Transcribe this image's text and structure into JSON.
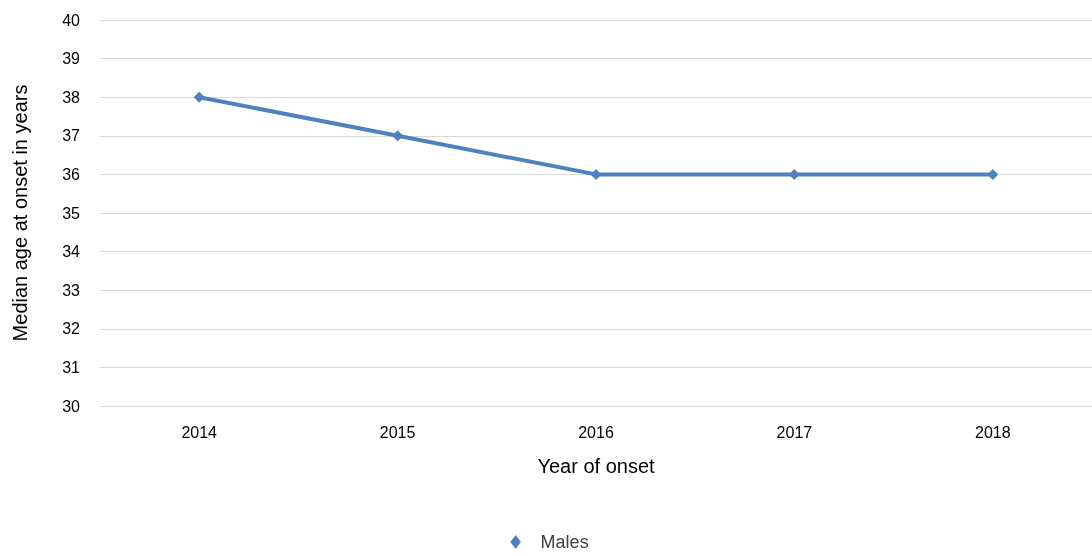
{
  "chart_data": {
    "type": "line",
    "xlabel": "Year of onset",
    "ylabel": "Median age at onset in years",
    "categories": [
      "2014",
      "2015",
      "2016",
      "2017",
      "2018"
    ],
    "series": [
      {
        "name": "Males",
        "color": "#4f81bd",
        "values": [
          38,
          37,
          36,
          36,
          36
        ]
      }
    ],
    "ylim": [
      30,
      40
    ],
    "yticks": [
      30,
      31,
      32,
      33,
      34,
      35,
      36,
      37,
      38,
      39,
      40
    ],
    "grid": "y",
    "legend": "bottom",
    "marker": "diamond",
    "line_style": "solid"
  }
}
